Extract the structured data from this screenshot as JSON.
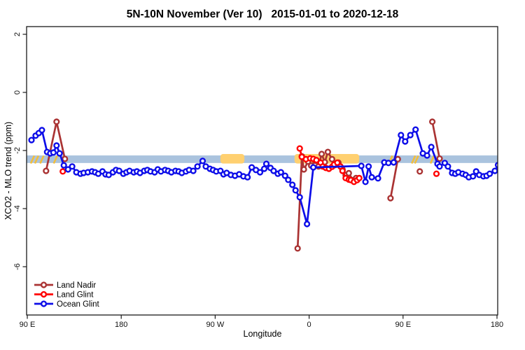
{
  "title": "5N-10N November (Ver 10)   2015-01-01 to 2020-12-18",
  "chart_data": {
    "type": "scatter",
    "title": "5N-10N November (Ver 10)   2015-01-01 to 2020-12-18",
    "xlabel": "Longitude",
    "ylabel": "XCO2 - MLO trend (ppm)",
    "xlim": [
      90,
      540
    ],
    "ylim": [
      -7.6,
      2.3
    ],
    "grid": false,
    "legend_position": "bottom-left",
    "x_ticks": {
      "values": [
        90,
        180,
        270,
        360,
        450,
        540
      ],
      "labels": [
        "90 E",
        "180",
        "90 W",
        "0",
        "90 E",
        "180"
      ]
    },
    "y_ticks": {
      "values": [
        2,
        0,
        -2,
        -4,
        -6
      ],
      "labels": [
        "2",
        "0",
        "-2",
        "-4",
        "-6"
      ]
    },
    "reference_band": {
      "ppm_from": -2.17,
      "ppm_to": -2.43,
      "color": "#AAC3DE"
    },
    "highlight_patches": [
      {
        "lon_from": 275,
        "lon_to": 298,
        "ppm_from": -2.12,
        "ppm_to": -2.45,
        "color": "#FFD070"
      },
      {
        "lon_from": 346,
        "lon_to": 408,
        "ppm_from": -2.12,
        "ppm_to": -2.45,
        "color": "#FFD070"
      }
    ],
    "yellow_dashes": {
      "color": "#F2BE3C",
      "lons": [
        95,
        99,
        104,
        117,
        438,
        441,
        460,
        463,
        478
      ]
    },
    "series": [
      {
        "name": "Land Nadir",
        "color": "#AA3333",
        "segments": [
          [
            [
              108,
              -2.7
            ],
            [
              118,
              -1.01
            ],
            [
              126,
              -2.29
            ]
          ],
          [
            [
              349,
              -5.37
            ],
            [
              353,
              -2.2
            ],
            [
              355,
              -2.65
            ],
            [
              359,
              -2.38
            ],
            [
              362,
              -2.52
            ],
            [
              366,
              -2.35
            ],
            [
              369,
              -2.55
            ],
            [
              372,
              -2.12
            ],
            [
              375,
              -2.4
            ],
            [
              378,
              -2.05
            ],
            [
              382,
              -2.3
            ],
            [
              385,
              -2.5
            ],
            [
              388,
              -2.42
            ],
            [
              392,
              -2.65
            ],
            [
              395,
              -2.85
            ],
            [
              398,
              -2.78
            ],
            [
              402,
              -3.02
            ],
            [
              405,
              -2.95
            ]
          ],
          [
            [
              438,
              -3.64
            ],
            [
              445,
              -2.3
            ]
          ],
          [
            [
              466,
              -2.72
            ]
          ],
          [
            [
              478,
              -1.01
            ],
            [
              485,
              -2.28
            ]
          ]
        ]
      },
      {
        "name": "Land Glint",
        "color": "#FF0000",
        "segments": [
          [
            [
              124,
              -2.72
            ]
          ],
          [
            [
              351,
              -1.93
            ],
            [
              353,
              -2.22
            ],
            [
              357,
              -2.3
            ],
            [
              361,
              -2.27
            ],
            [
              364,
              -2.29
            ],
            [
              367,
              -2.33
            ],
            [
              371,
              -2.42
            ],
            [
              373,
              -2.55
            ],
            [
              376,
              -2.6
            ],
            [
              379,
              -2.63
            ],
            [
              382,
              -2.56
            ],
            [
              384,
              -2.48
            ],
            [
              387,
              -2.42
            ],
            [
              390,
              -2.55
            ],
            [
              392,
              -2.7
            ],
            [
              395,
              -2.95
            ],
            [
              398,
              -3.0
            ],
            [
              400,
              -3.02
            ],
            [
              403,
              -3.08
            ],
            [
              406,
              -3.02
            ],
            [
              408,
              -2.95
            ]
          ],
          [
            [
              482,
              -2.8
            ]
          ]
        ]
      },
      {
        "name": "Ocean Glint",
        "color": "#0D0DE8",
        "segments": [
          [
            [
              94,
              -1.64
            ],
            [
              98,
              -1.49
            ],
            [
              101,
              -1.4
            ],
            [
              104,
              -1.3
            ],
            [
              109,
              -2.05
            ],
            [
              112,
              -2.1
            ],
            [
              115,
              -2.07
            ],
            [
              118,
              -1.83
            ],
            [
              121,
              -2.1
            ],
            [
              125,
              -2.51
            ],
            [
              129,
              -2.65
            ],
            [
              133,
              -2.55
            ],
            [
              137,
              -2.75
            ],
            [
              141,
              -2.8
            ],
            [
              144,
              -2.77
            ],
            [
              148,
              -2.75
            ],
            [
              152,
              -2.72
            ],
            [
              155,
              -2.75
            ],
            [
              158,
              -2.8
            ],
            [
              162,
              -2.72
            ],
            [
              165,
              -2.82
            ],
            [
              168,
              -2.84
            ],
            [
              172,
              -2.75
            ],
            [
              175,
              -2.67
            ],
            [
              178,
              -2.7
            ],
            [
              182,
              -2.8
            ],
            [
              185,
              -2.75
            ],
            [
              188,
              -2.7
            ],
            [
              192,
              -2.75
            ],
            [
              195,
              -2.72
            ],
            [
              198,
              -2.77
            ],
            [
              202,
              -2.7
            ],
            [
              205,
              -2.67
            ],
            [
              208,
              -2.72
            ],
            [
              212,
              -2.75
            ],
            [
              215,
              -2.65
            ],
            [
              218,
              -2.72
            ],
            [
              222,
              -2.67
            ],
            [
              225,
              -2.7
            ],
            [
              228,
              -2.75
            ],
            [
              232,
              -2.7
            ],
            [
              235,
              -2.72
            ],
            [
              238,
              -2.77
            ],
            [
              242,
              -2.72
            ],
            [
              245,
              -2.67
            ],
            [
              249,
              -2.7
            ],
            [
              253,
              -2.55
            ],
            [
              258,
              -2.36
            ],
            [
              261,
              -2.55
            ],
            [
              265,
              -2.63
            ],
            [
              268,
              -2.67
            ],
            [
              271,
              -2.72
            ],
            [
              275,
              -2.7
            ],
            [
              278,
              -2.82
            ],
            [
              281,
              -2.77
            ],
            [
              285,
              -2.84
            ],
            [
              289,
              -2.87
            ],
            [
              293,
              -2.82
            ],
            [
              297,
              -2.89
            ],
            [
              301,
              -2.92
            ],
            [
              305,
              -2.58
            ],
            [
              309,
              -2.67
            ],
            [
              313,
              -2.75
            ],
            [
              317,
              -2.63
            ],
            [
              319,
              -2.46
            ],
            [
              323,
              -2.6
            ],
            [
              326,
              -2.7
            ],
            [
              330,
              -2.8
            ],
            [
              333,
              -2.75
            ],
            [
              337,
              -2.87
            ],
            [
              340,
              -3.01
            ],
            [
              344,
              -3.18
            ],
            [
              347,
              -3.37
            ],
            [
              351,
              -3.61
            ],
            [
              358,
              -4.53
            ],
            [
              364,
              -2.58
            ],
            [
              410,
              -2.53
            ],
            [
              414,
              -3.08
            ],
            [
              417,
              -2.55
            ],
            [
              420,
              -2.92
            ],
            [
              426,
              -2.96
            ],
            [
              432,
              -2.41
            ],
            [
              436,
              -2.43
            ],
            [
              441,
              -2.41
            ],
            [
              448,
              -1.47
            ],
            [
              452,
              -1.69
            ],
            [
              457,
              -1.47
            ],
            [
              462,
              -1.28
            ],
            [
              469,
              -2.1
            ],
            [
              473,
              -2.17
            ],
            [
              477,
              -1.88
            ],
            [
              483,
              -2.46
            ],
            [
              485,
              -2.55
            ],
            [
              490,
              -2.43
            ],
            [
              493,
              -2.55
            ],
            [
              497,
              -2.77
            ],
            [
              500,
              -2.8
            ],
            [
              503,
              -2.75
            ],
            [
              507,
              -2.8
            ],
            [
              510,
              -2.84
            ],
            [
              513,
              -2.92
            ],
            [
              517,
              -2.89
            ],
            [
              520,
              -2.72
            ],
            [
              523,
              -2.84
            ],
            [
              527,
              -2.89
            ],
            [
              530,
              -2.87
            ],
            [
              533,
              -2.8
            ],
            [
              538,
              -2.7
            ],
            [
              541,
              -2.5
            ]
          ]
        ]
      }
    ]
  },
  "legend": {
    "items": [
      "Land Nadir",
      "Land Glint",
      "Ocean Glint"
    ]
  }
}
